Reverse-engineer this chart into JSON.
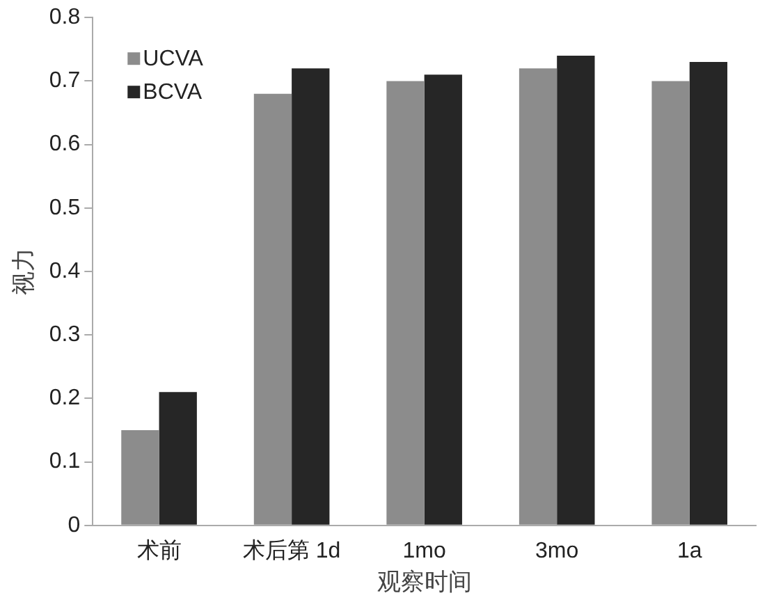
{
  "chart_data": {
    "type": "bar",
    "xlabel": "观察时间",
    "ylabel": "视力",
    "categories": [
      "术前",
      "术后第 1d",
      "1mo",
      "3mo",
      "1a"
    ],
    "series": [
      {
        "name": "UCVA",
        "color": "#8c8c8c",
        "values": [
          0.15,
          0.68,
          0.7,
          0.72,
          0.7
        ]
      },
      {
        "name": "BCVA",
        "color": "#262626",
        "values": [
          0.21,
          0.72,
          0.71,
          0.74,
          0.73
        ]
      }
    ],
    "ylim": [
      0,
      0.8
    ],
    "yticks": [
      {
        "value": 0,
        "label": "0"
      },
      0.1,
      0.2,
      0.3,
      0.4,
      0.5,
      0.6,
      0.7,
      0.8
    ],
    "grid": false,
    "legend": "top left"
  }
}
